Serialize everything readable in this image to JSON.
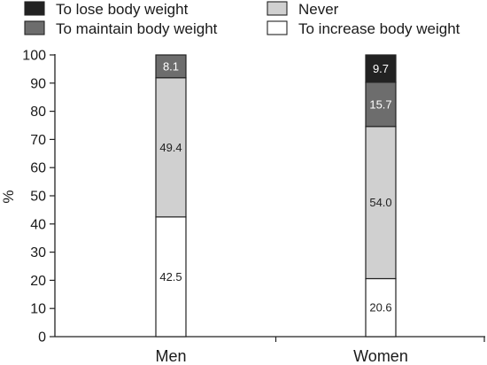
{
  "chart_data": {
    "type": "bar",
    "stacked": true,
    "categories": [
      "Men",
      "Women"
    ],
    "ylabel": "%",
    "xlabel": "",
    "ylim": [
      0,
      100
    ],
    "yticks": [
      0,
      10,
      20,
      30,
      40,
      50,
      60,
      70,
      80,
      90,
      100
    ],
    "grid": false,
    "legend_position": "top",
    "series": [
      {
        "name": "To increase body weight",
        "color": "#ffffff",
        "label_color": "#222222",
        "values": [
          42.5,
          20.6
        ]
      },
      {
        "name": "Never",
        "color": "#d0d0d0",
        "label_color": "#222222",
        "values": [
          49.4,
          54.0
        ]
      },
      {
        "name": "To maintain body weight",
        "color": "#6d6d6d",
        "label_color": "#ffffff",
        "values": [
          8.1,
          15.7
        ]
      },
      {
        "name": "To lose body weight",
        "color": "#222222",
        "label_color": "#ffffff",
        "values": [
          0,
          9.7
        ]
      }
    ],
    "legend_order": [
      "To lose body weight",
      "Never",
      "To maintain body weight",
      "To increase body weight"
    ]
  }
}
